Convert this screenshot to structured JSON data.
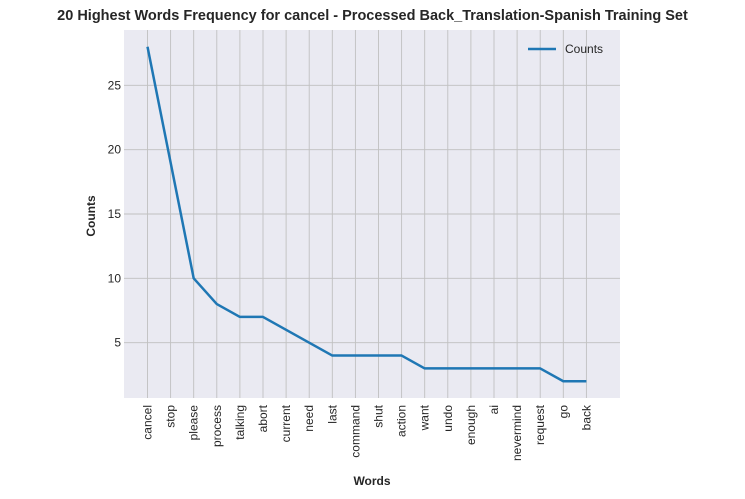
{
  "chart_data": {
    "type": "line",
    "title": "20 Highest Words Frequency for cancel - Processed Back_Translation-Spanish Training Set",
    "xlabel": "Words",
    "ylabel": "Counts",
    "categories": [
      "cancel",
      "stop",
      "please",
      "process",
      "talking",
      "abort",
      "current",
      "need",
      "last",
      "command",
      "shut",
      "action",
      "want",
      "undo",
      "enough",
      "ai",
      "nevermind",
      "request",
      "go",
      "back"
    ],
    "series": [
      {
        "name": "Counts",
        "values": [
          28,
          19,
          10,
          8,
          7,
          7,
          6,
          5,
          4,
          4,
          4,
          4,
          3,
          3,
          3,
          3,
          3,
          3,
          2,
          2
        ]
      }
    ],
    "ylim": [
      0.7,
      29.3
    ],
    "yticks": [
      5,
      10,
      15,
      20,
      25
    ],
    "grid": true,
    "legend_position": "top-right",
    "colors": {
      "line": "#1f77b4",
      "background": "#eaeaf2",
      "grid": "#c0c0c0"
    }
  }
}
